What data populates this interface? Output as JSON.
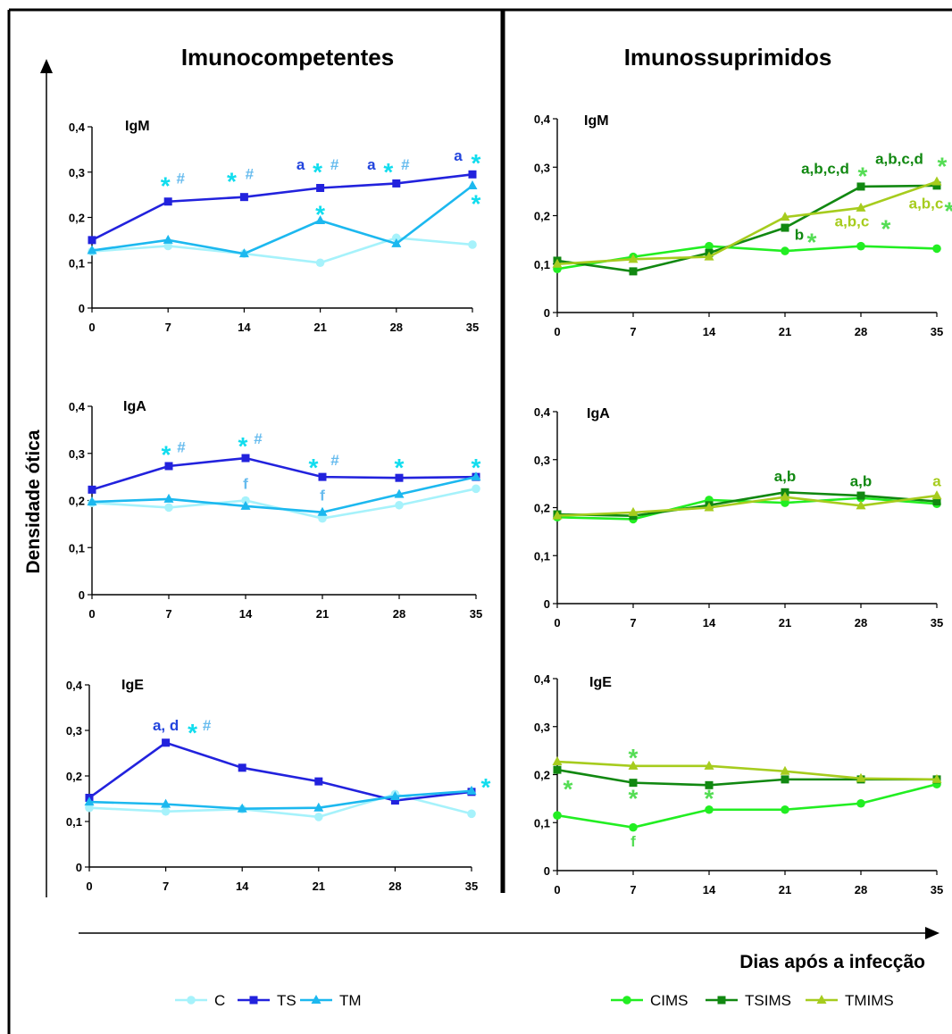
{
  "figure": {
    "left_title": "Imunocompetentes",
    "right_title": "Imunossuprimidos",
    "ylabel": "Densidade ótica",
    "xlabel": "Dias após a infecção",
    "legend_left": [
      {
        "name": "C",
        "color": "#a6f2fb",
        "marker": "circle"
      },
      {
        "name": "TS",
        "color": "#2222dd",
        "marker": "square"
      },
      {
        "name": "TM",
        "color": "#1cb8ef",
        "marker": "triangle"
      }
    ],
    "legend_right": [
      {
        "name": "CIMS",
        "color": "#22ee22",
        "marker": "circle"
      },
      {
        "name": "TSIMS",
        "color": "#118811",
        "marker": "square"
      },
      {
        "name": "TMIMS",
        "color": "#a6cc1e",
        "marker": "triangle"
      }
    ]
  },
  "chart_data": [
    {
      "type": "line",
      "title": "IgM",
      "group": "Imunocompetentes",
      "x": [
        0,
        7,
        14,
        21,
        28,
        35
      ],
      "x_tick_labels": [
        "0",
        "7",
        "14",
        "21",
        "28",
        "35"
      ],
      "y_tick_labels": [
        "0",
        "0,1",
        "0,2",
        "0,3",
        "0,4"
      ],
      "ylim": [
        0,
        0.4
      ],
      "series": [
        {
          "name": "C",
          "color": "#a6f2fb",
          "marker": "circle",
          "values": [
            0.125,
            0.137,
            0.12,
            0.1,
            0.155,
            0.14
          ]
        },
        {
          "name": "TS",
          "color": "#2222dd",
          "marker": "square",
          "values": [
            0.15,
            0.235,
            0.245,
            0.265,
            0.275,
            0.295
          ]
        },
        {
          "name": "TM",
          "color": "#1cb8ef",
          "marker": "triangle",
          "values": [
            0.127,
            0.15,
            0.12,
            0.193,
            0.142,
            0.27
          ]
        }
      ],
      "annotations": [
        {
          "x": 7,
          "y": 0.275,
          "dx": -3,
          "text": "*",
          "color": "#11ddee"
        },
        {
          "x": 7,
          "y": 0.275,
          "dx": 14,
          "text": "#",
          "color": "#66bbee"
        },
        {
          "x": 14,
          "y": 0.285,
          "dx": -14,
          "text": "*",
          "color": "#11ddee"
        },
        {
          "x": 14,
          "y": 0.285,
          "dx": 6,
          "text": "#",
          "color": "#66bbee"
        },
        {
          "x": 21,
          "y": 0.305,
          "dx": -22,
          "text": "a",
          "color": "#2244dd"
        },
        {
          "x": 21,
          "y": 0.305,
          "dx": -3,
          "text": "*",
          "color": "#11ddee"
        },
        {
          "x": 21,
          "y": 0.305,
          "dx": 16,
          "text": "#",
          "color": "#66bbee"
        },
        {
          "x": 28,
          "y": 0.305,
          "dx": -28,
          "text": "a",
          "color": "#2244dd"
        },
        {
          "x": 28,
          "y": 0.305,
          "dx": -9,
          "text": "*",
          "color": "#11ddee"
        },
        {
          "x": 28,
          "y": 0.305,
          "dx": 10,
          "text": "#",
          "color": "#66bbee"
        },
        {
          "x": 21,
          "y": 0.212,
          "dx": 0,
          "text": "*",
          "color": "#11ddee"
        },
        {
          "x": 35,
          "y": 0.325,
          "dx": -16,
          "text": "a",
          "color": "#2244dd"
        },
        {
          "x": 35,
          "y": 0.325,
          "dx": 4,
          "text": "*",
          "color": "#11ddee"
        },
        {
          "x": 35,
          "y": 0.235,
          "dx": 4,
          "text": "*",
          "color": "#11ddee"
        }
      ]
    },
    {
      "type": "line",
      "title": "IgM",
      "group": "Imunossuprimidos",
      "x": [
        0,
        7,
        14,
        21,
        28,
        35
      ],
      "x_tick_labels": [
        "0",
        "7",
        "14",
        "21",
        "28",
        "35"
      ],
      "y_tick_labels": [
        "0",
        "0,1",
        "0,2",
        "0,3",
        "0,4"
      ],
      "ylim": [
        0,
        0.4
      ],
      "series": [
        {
          "name": "CIMS",
          "color": "#22ee22",
          "marker": "circle",
          "values": [
            0.09,
            0.115,
            0.137,
            0.127,
            0.137,
            0.132
          ]
        },
        {
          "name": "TSIMS",
          "color": "#118811",
          "marker": "square",
          "values": [
            0.107,
            0.085,
            0.123,
            0.175,
            0.26,
            0.262
          ]
        },
        {
          "name": "TMIMS",
          "color": "#a6cc1e",
          "marker": "triangle",
          "values": [
            0.1,
            0.11,
            0.115,
            0.197,
            0.216,
            0.27
          ]
        }
      ],
      "annotations": [
        {
          "x": 28,
          "y": 0.287,
          "dx": -40,
          "text": "a,b,c,d",
          "color": "#118811"
        },
        {
          "x": 28,
          "y": 0.287,
          "dx": 2,
          "text": "*",
          "color": "#55dd55"
        },
        {
          "x": 35,
          "y": 0.307,
          "dx": -42,
          "text": "a,b,c,d",
          "color": "#118811"
        },
        {
          "x": 35,
          "y": 0.307,
          "dx": 6,
          "text": "*",
          "color": "#55dd55"
        },
        {
          "x": 28,
          "y": 0.178,
          "dx": -10,
          "text": "a,b,c",
          "color": "#a6cc1e"
        },
        {
          "x": 28,
          "y": 0.178,
          "dx": 28,
          "text": "*",
          "color": "#55dd55"
        },
        {
          "x": 35,
          "y": 0.215,
          "dx": -12,
          "text": "a,b,c",
          "color": "#a6cc1e"
        },
        {
          "x": 35,
          "y": 0.215,
          "dx": 14,
          "text": "*",
          "color": "#55dd55"
        },
        {
          "x": 21,
          "y": 0.15,
          "dx": 16,
          "text": "b",
          "color": "#118811"
        },
        {
          "x": 21,
          "y": 0.15,
          "dx": 30,
          "text": "*",
          "color": "#55dd55"
        }
      ]
    },
    {
      "type": "line",
      "title": "IgA",
      "group": "Imunocompetentes",
      "x": [
        0,
        7,
        14,
        21,
        28,
        35
      ],
      "x_tick_labels": [
        "0",
        "7",
        "14",
        "21",
        "28",
        "35"
      ],
      "y_tick_labels": [
        "0",
        "0,1",
        "0,2",
        "0,3",
        "0,4"
      ],
      "ylim": [
        0,
        0.4
      ],
      "series": [
        {
          "name": "C",
          "color": "#a6f2fb",
          "marker": "circle",
          "values": [
            0.195,
            0.185,
            0.2,
            0.162,
            0.19,
            0.225
          ]
        },
        {
          "name": "TS",
          "color": "#2222dd",
          "marker": "square",
          "values": [
            0.223,
            0.273,
            0.29,
            0.25,
            0.248,
            0.25
          ]
        },
        {
          "name": "TM",
          "color": "#1cb8ef",
          "marker": "triangle",
          "values": [
            0.197,
            0.203,
            0.188,
            0.175,
            0.213,
            0.25
          ]
        }
      ],
      "annotations": [
        {
          "x": 7,
          "y": 0.302,
          "dx": -3,
          "text": "*",
          "color": "#11ddee"
        },
        {
          "x": 7,
          "y": 0.302,
          "dx": 14,
          "text": "#",
          "color": "#66bbee"
        },
        {
          "x": 14,
          "y": 0.32,
          "dx": -3,
          "text": "*",
          "color": "#11ddee"
        },
        {
          "x": 14,
          "y": 0.32,
          "dx": 14,
          "text": "#",
          "color": "#66bbee"
        },
        {
          "x": 21,
          "y": 0.275,
          "dx": -10,
          "text": "*",
          "color": "#11ddee"
        },
        {
          "x": 21,
          "y": 0.275,
          "dx": 14,
          "text": "#",
          "color": "#66bbee"
        },
        {
          "x": 28,
          "y": 0.275,
          "dx": 0,
          "text": "*",
          "color": "#11ddee"
        },
        {
          "x": 35,
          "y": 0.275,
          "dx": 0,
          "text": "*",
          "color": "#11ddee"
        },
        {
          "x": 14,
          "y": 0.225,
          "dx": 0,
          "text": "f",
          "color": "#66bbee"
        },
        {
          "x": 21,
          "y": 0.2,
          "dx": 0,
          "text": "f",
          "color": "#66bbee"
        }
      ]
    },
    {
      "type": "line",
      "title": "IgA",
      "group": "Imunossuprimidos",
      "x": [
        0,
        7,
        14,
        21,
        28,
        35
      ],
      "x_tick_labels": [
        "0",
        "7",
        "14",
        "21",
        "28",
        "35"
      ],
      "y_tick_labels": [
        "0",
        "0,1",
        "0,2",
        "0,3",
        "0,4"
      ],
      "ylim": [
        0,
        0.4
      ],
      "series": [
        {
          "name": "CIMS",
          "color": "#22ee22",
          "marker": "circle",
          "values": [
            0.18,
            0.176,
            0.216,
            0.21,
            0.22,
            0.208
          ]
        },
        {
          "name": "TSIMS",
          "color": "#118811",
          "marker": "square",
          "values": [
            0.186,
            0.183,
            0.205,
            0.232,
            0.225,
            0.213
          ]
        },
        {
          "name": "TMIMS",
          "color": "#a6cc1e",
          "marker": "triangle",
          "values": [
            0.183,
            0.19,
            0.2,
            0.222,
            0.204,
            0.225
          ]
        }
      ],
      "annotations": [
        {
          "x": 21,
          "y": 0.255,
          "dx": 0,
          "text": "a,b",
          "color": "#118811"
        },
        {
          "x": 28,
          "y": 0.245,
          "dx": 0,
          "text": "a,b",
          "color": "#118811"
        },
        {
          "x": 35,
          "y": 0.245,
          "dx": 0,
          "text": "a",
          "color": "#a6cc1e"
        }
      ]
    },
    {
      "type": "line",
      "title": "IgE",
      "group": "Imunocompetentes",
      "x": [
        0,
        7,
        14,
        21,
        28,
        35
      ],
      "x_tick_labels": [
        "0",
        "7",
        "14",
        "21",
        "28",
        "35"
      ],
      "y_tick_labels": [
        "0",
        "0,1",
        "0,2",
        "0,3",
        "0,4"
      ],
      "ylim": [
        0,
        0.4
      ],
      "series": [
        {
          "name": "C",
          "color": "#a6f2fb",
          "marker": "circle",
          "values": [
            0.13,
            0.122,
            0.127,
            0.11,
            0.16,
            0.117
          ]
        },
        {
          "name": "TS",
          "color": "#2222dd",
          "marker": "square",
          "values": [
            0.152,
            0.273,
            0.218,
            0.188,
            0.146,
            0.165
          ]
        },
        {
          "name": "TM",
          "color": "#1cb8ef",
          "marker": "triangle",
          "values": [
            0.143,
            0.138,
            0.128,
            0.13,
            0.155,
            0.167
          ]
        }
      ],
      "annotations": [
        {
          "x": 7,
          "y": 0.3,
          "dx": 0,
          "text": "a, d",
          "color": "#2244dd"
        },
        {
          "x": 7,
          "y": 0.3,
          "dx": 30,
          "text": "*",
          "color": "#11ddee"
        },
        {
          "x": 7,
          "y": 0.3,
          "dx": 46,
          "text": "#",
          "color": "#66bbee"
        },
        {
          "x": 35,
          "y": 0.18,
          "dx": 16,
          "text": "*",
          "color": "#11ddee"
        }
      ]
    },
    {
      "type": "line",
      "title": "IgE",
      "group": "Imunossuprimidos",
      "x": [
        0,
        7,
        14,
        21,
        28,
        35
      ],
      "x_tick_labels": [
        "0",
        "7",
        "14",
        "21",
        "28",
        "35"
      ],
      "y_tick_labels": [
        "0",
        "0,1",
        "0,2",
        "0,3",
        "0,4"
      ],
      "ylim": [
        0,
        0.4
      ],
      "series": [
        {
          "name": "CIMS",
          "color": "#22ee22",
          "marker": "circle",
          "values": [
            0.115,
            0.09,
            0.127,
            0.127,
            0.14,
            0.18
          ]
        },
        {
          "name": "TSIMS",
          "color": "#118811",
          "marker": "square",
          "values": [
            0.21,
            0.183,
            0.178,
            0.19,
            0.19,
            0.19
          ]
        },
        {
          "name": "TMIMS",
          "color": "#a6cc1e",
          "marker": "triangle",
          "values": [
            0.227,
            0.218,
            0.218,
            0.207,
            0.192,
            0.19
          ]
        }
      ],
      "annotations": [
        {
          "x": 7,
          "y": 0.24,
          "dx": 0,
          "text": "*",
          "color": "#55dd55"
        },
        {
          "x": 0,
          "y": 0.175,
          "dx": 12,
          "text": "*",
          "color": "#55dd55"
        },
        {
          "x": 7,
          "y": 0.155,
          "dx": 0,
          "text": "*",
          "color": "#55dd55"
        },
        {
          "x": 14,
          "y": 0.155,
          "dx": 0,
          "text": "*",
          "color": "#55dd55"
        },
        {
          "x": 7,
          "y": 0.05,
          "dx": 0,
          "text": "f",
          "color": "#55dd55"
        }
      ]
    }
  ]
}
